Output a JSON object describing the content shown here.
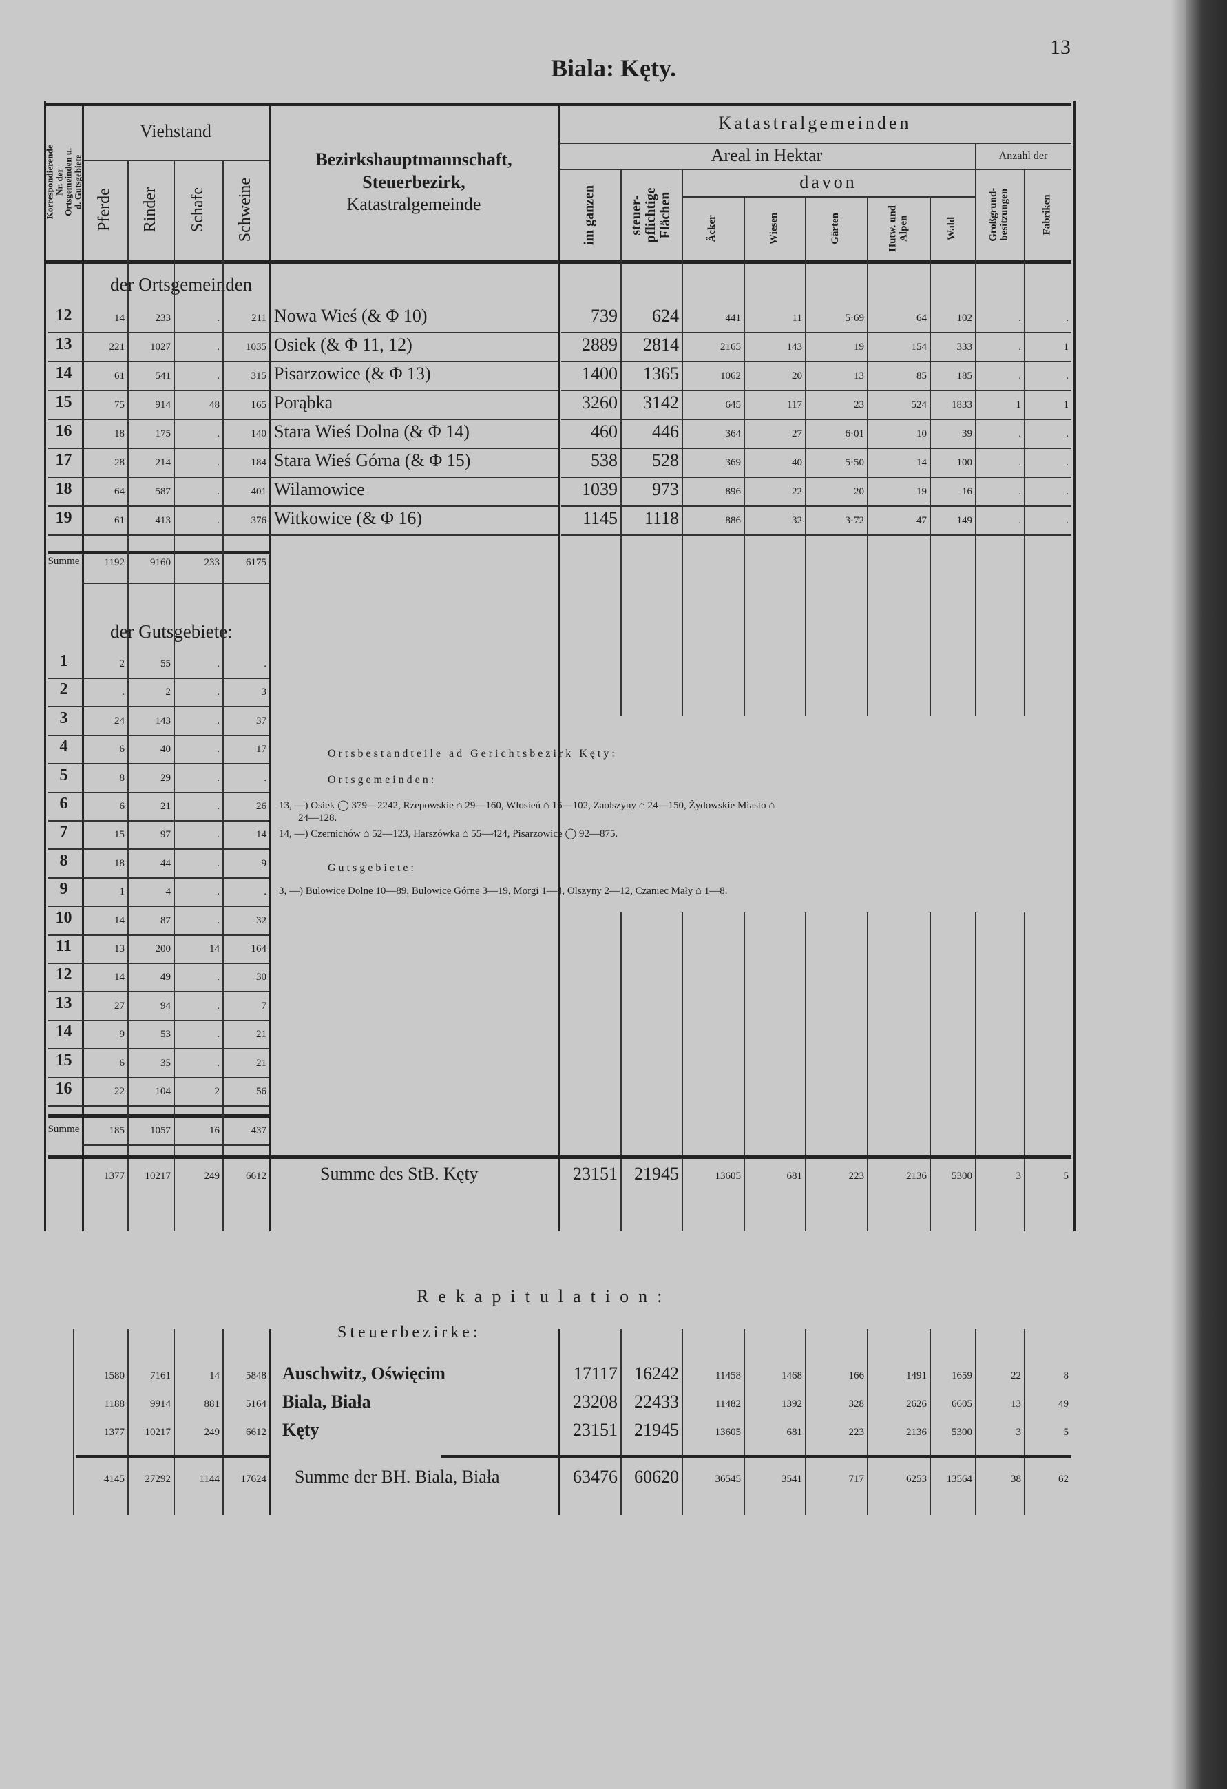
{
  "page": {
    "title": "Biala: Kęty.",
    "number": "13"
  },
  "header": {
    "nr_col": "Korrespondierende Nr. der Ortsgemeinden u. d. Gutsgebiete",
    "viehstand": "Viehstand",
    "vieh_cols": [
      "Pferde",
      "Rinder",
      "Schafe",
      "Schweine"
    ],
    "name_col": [
      "Bezirkshauptmannschaft,",
      "Steuerbezirk,",
      "Katastralgemeinde"
    ],
    "katastral": "Katastralgemeinden",
    "areal": "Areal in Hektar",
    "anzahl": "Anzahl der",
    "davon": "davon",
    "areal_cols": [
      "im ganzen",
      "steuer-pflichtige Flächen"
    ],
    "davon_cols": [
      "Äcker",
      "Wiesen",
      "Gärten",
      "Hutw. und Alpen",
      "Wald"
    ],
    "anzahl_cols": [
      "Großgrund-besitzungen",
      "Fabriken"
    ]
  },
  "ortsgemeinden": {
    "label": "der Ortsgemeinden",
    "rows": [
      [
        "12",
        "14",
        "233",
        ".",
        "211",
        "Nowa Wieś (& Φ 10)",
        "739",
        "624",
        "441",
        "11",
        "5·69",
        "64",
        "102",
        ".",
        "."
      ],
      [
        "13",
        "221",
        "1027",
        ".",
        "1035",
        "Osiek (& Φ 11, 12)",
        "2889",
        "2814",
        "2165",
        "143",
        "19",
        "154",
        "333",
        ".",
        "1"
      ],
      [
        "14",
        "61",
        "541",
        ".",
        "315",
        "Pisarzowice (& Φ 13)",
        "1400",
        "1365",
        "1062",
        "20",
        "13",
        "85",
        "185",
        ".",
        "."
      ],
      [
        "15",
        "75",
        "914",
        "48",
        "165",
        "Porąbka",
        "3260",
        "3142",
        "645",
        "117",
        "23",
        "524",
        "1833",
        "1",
        "1"
      ],
      [
        "16",
        "18",
        "175",
        ".",
        "140",
        "Stara Wieś Dolna (& Φ 14)",
        "460",
        "446",
        "364",
        "27",
        "6·01",
        "10",
        "39",
        ".",
        "."
      ],
      [
        "17",
        "28",
        "214",
        ".",
        "184",
        "Stara Wieś Górna (& Φ 15)",
        "538",
        "528",
        "369",
        "40",
        "5·50",
        "14",
        "100",
        ".",
        "."
      ],
      [
        "18",
        "64",
        "587",
        ".",
        "401",
        "Wilamowice",
        "1039",
        "973",
        "896",
        "22",
        "20",
        "19",
        "16",
        ".",
        "."
      ],
      [
        "19",
        "61",
        "413",
        ".",
        "376",
        "Witkowice (& Φ 16)",
        "1145",
        "1118",
        "886",
        "32",
        "3·72",
        "47",
        "149",
        ".",
        "."
      ]
    ],
    "summe": [
      "Summe",
      "1192",
      "9160",
      "233",
      "6175"
    ]
  },
  "gutsgebiete": {
    "label": "der Gutsgebiete:",
    "rows": [
      [
        "1",
        "2",
        "55",
        ".",
        "."
      ],
      [
        "2",
        ".",
        "2",
        ".",
        "3"
      ],
      [
        "3",
        "24",
        "143",
        ".",
        "37"
      ],
      [
        "4",
        "6",
        "40",
        ".",
        "17"
      ],
      [
        "5",
        "8",
        "29",
        ".",
        "."
      ],
      [
        "6",
        "6",
        "21",
        ".",
        "26"
      ],
      [
        "7",
        "15",
        "97",
        ".",
        "14"
      ],
      [
        "8",
        "18",
        "44",
        ".",
        "9"
      ],
      [
        "9",
        "1",
        "4",
        ".",
        "."
      ],
      [
        "10",
        "14",
        "87",
        ".",
        "32"
      ],
      [
        "11",
        "13",
        "200",
        "14",
        "164"
      ],
      [
        "12",
        "14",
        "49",
        ".",
        "30"
      ],
      [
        "13",
        "27",
        "94",
        ".",
        "7"
      ],
      [
        "14",
        "9",
        "53",
        ".",
        "21"
      ],
      [
        "15",
        "6",
        "35",
        ".",
        "21"
      ],
      [
        "16",
        "22",
        "104",
        "2",
        "56"
      ]
    ],
    "summe": [
      "Summe",
      "185",
      "1057",
      "16",
      "437"
    ]
  },
  "notes": {
    "heading": "Ortsbestandteile ad Gerichtsbezirk Kęty:",
    "orts_label": "Ortsgemeinden:",
    "line13a": "13, —) Osiek ◯ 379—2242, Rzepowskie ⌂ 29—160, Włosień ⌂ 15—102, Zaolszyny ⌂ 24—150, Żydowskie Miasto ⌂",
    "line13b": "24—128.",
    "line14": "14, —) Czernichów ⌂ 52—123, Harszówka ⌂ 55—424, Pisarzowice ◯ 92—875.",
    "guts_label": "Gutsgebiete:",
    "line3": "3, —) Bulowice Dolne 10—89, Bulowice Górne 3—19, Morgi 1—4, Olszyny 2—12, Czaniec Mały ⌂ 1—8."
  },
  "total": [
    "1377",
    "10217",
    "249",
    "6612",
    "Summe des StB. Kęty",
    "23151",
    "21945",
    "13605",
    "681",
    "223",
    "2136",
    "5300",
    "3",
    "5"
  ],
  "rekapitulation": {
    "title": "Rekapitulation:",
    "subtitle": "Steuerbezirke:",
    "rows": [
      [
        "1580",
        "7161",
        "14",
        "5848",
        "Auschwitz, Oświęcim",
        "17117",
        "16242",
        "11458",
        "1468",
        "166",
        "1491",
        "1659",
        "22",
        "8"
      ],
      [
        "1188",
        "9914",
        "881",
        "5164",
        "Biala, Biała",
        "23208",
        "22433",
        "11482",
        "1392",
        "328",
        "2626",
        "6605",
        "13",
        "49"
      ],
      [
        "1377",
        "10217",
        "249",
        "6612",
        "Kęty",
        "23151",
        "21945",
        "13605",
        "681",
        "223",
        "2136",
        "5300",
        "3",
        "5"
      ]
    ],
    "summe": [
      "4145",
      "27292",
      "1144",
      "17624",
      "Summe der BH. Biala, Biała",
      "63476",
      "60620",
      "36545",
      "3541",
      "717",
      "6253",
      "13564",
      "38",
      "62"
    ]
  }
}
